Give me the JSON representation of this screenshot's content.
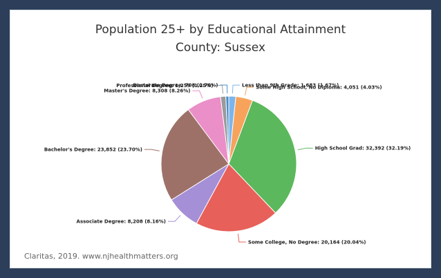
{
  "chart_data": {
    "type": "pie",
    "title": "Population 25+ by Educational Attainment",
    "subtitle": "County: Sussex",
    "slices": [
      {
        "label": "Less than 9th Grade",
        "value": 1683,
        "value_text": "1,683",
        "percent": "1.67%",
        "color": "#7cb5ec"
      },
      {
        "label": "Some High School, No Diploma",
        "value": 4051,
        "value_text": "4,051",
        "percent": "4.03%",
        "color": "#f7a35c"
      },
      {
        "label": "High School Grad",
        "value": 32392,
        "value_text": "32,392",
        "percent": "32.19%",
        "color": "#5cb85c"
      },
      {
        "label": "Some College, No Degree",
        "value": 20164,
        "value_text": "20,164",
        "percent": "20.04%",
        "color": "#e8605a"
      },
      {
        "label": "Associate Degree",
        "value": 8208,
        "value_text": "8,208",
        "percent": "8.16%",
        "color": "#a58fd6"
      },
      {
        "label": "Bachelor's Degree",
        "value": 23852,
        "value_text": "23,852",
        "percent": "23.70%",
        "color": "#9e7168"
      },
      {
        "label": "Master's Degree",
        "value": 8308,
        "value_text": "8,308",
        "percent": "8.26%",
        "color": "#eb8fc8"
      },
      {
        "label": "Professional Degree",
        "value": 1259,
        "value_text": "1,259",
        "percent": "1.25%",
        "color": "#9a9a9a"
      },
      {
        "label": "Doctorate Degree",
        "value": 708,
        "value_text": "708",
        "percent": "0.70%",
        "color": "#4a8fc9"
      }
    ]
  },
  "source": "Claritas, 2019. www.njhealthmatters.org"
}
